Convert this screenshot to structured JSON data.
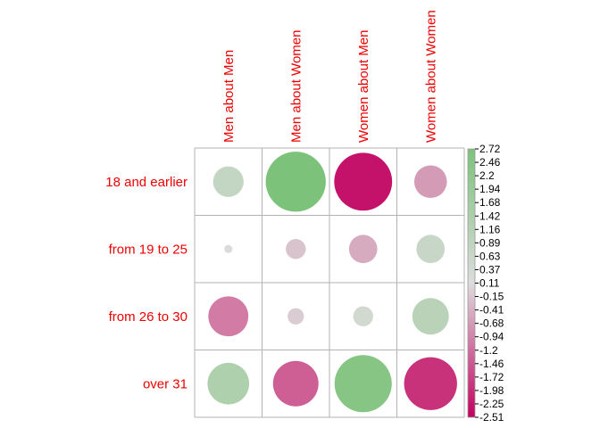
{
  "chart_data": {
    "type": "heatmap",
    "title": "",
    "columns": [
      "Men about Men",
      "Men about Women",
      "Women about Men",
      "Women about Women"
    ],
    "rows": [
      "18 and earlier",
      "from 19 to 25",
      "from 26 to 30",
      "over 31"
    ],
    "values": [
      [
        0.7,
        2.7,
        -2.51,
        -0.8
      ],
      [
        0.05,
        -0.3,
        -0.6,
        0.6
      ],
      [
        -1.2,
        -0.2,
        0.3,
        1.0
      ],
      [
        1.3,
        -1.55,
        2.45,
        -2.1
      ]
    ],
    "colorbar": {
      "min": -2.51,
      "max": 2.72,
      "ticks": [
        "2.72",
        "2.46",
        "2.2",
        "1.94",
        "1.68",
        "1.42",
        "1.16",
        "0.89",
        "0.63",
        "0.37",
        "0.11",
        "-0.15",
        "-0.41",
        "-0.68",
        "-0.94",
        "-1.2",
        "-1.46",
        "-1.72",
        "-1.98",
        "-2.25",
        "-2.51"
      ]
    },
    "colors": {
      "negative": "#c2005f",
      "neutral": "#dcdcdc",
      "positive": "#7cc27a",
      "grid": "#b3b3b3"
    },
    "legend": "right"
  }
}
